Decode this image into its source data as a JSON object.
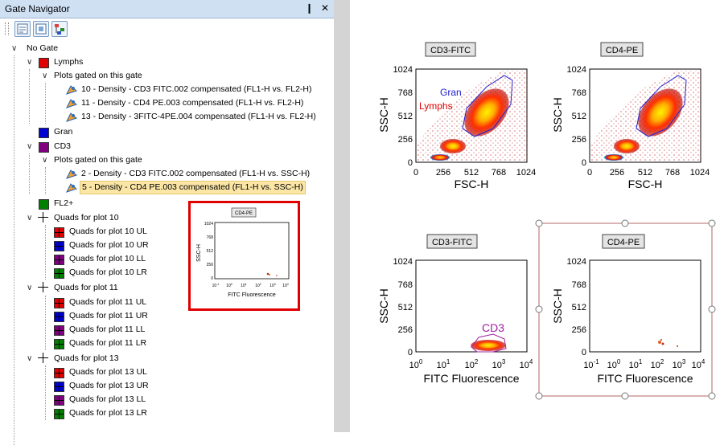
{
  "panel": {
    "title": "Gate Navigator",
    "pin_glyph": "❙",
    "close_glyph": "✕"
  },
  "toolbar": {
    "icons": [
      "gate-list-icon",
      "gate-properties-icon",
      "gate-hierarchy-icon"
    ]
  },
  "tree": {
    "root": "No Gate",
    "lymphs": "Lymphs",
    "plots_gated_1": "Plots gated on this gate",
    "plot_10": "10 - Density - CD3 FITC.002 compensated (FL1-H vs. FL2-H)",
    "plot_11": "11 - Density - CD4 PE.003 compensated (FL1-H vs. FL2-H)",
    "plot_13": "13 - Density - 3FITC-4PE.004 compensated (FL1-H vs. FL2-H)",
    "gran": "Gran",
    "cd3": "CD3",
    "plots_gated_2": "Plots gated on this gate",
    "plot_2": "2 - Density - CD3 FITC.002 compensated (FL1-H vs. SSC-H)",
    "plot_5": "5 - Density - CD4 PE.003 compensated (FL1-H vs. SSC-H)",
    "fl2": "FL2+",
    "quads10": "Quads for plot 10",
    "q10ul": "Quads for plot 10 UL",
    "q10ur": "Quads for plot 10 UR",
    "q10ll": "Quads for plot 10 LL",
    "q10lr": "Quads for plot 10 LR",
    "quads11": "Quads for plot 11",
    "q11ul": "Quads for plot 11 UL",
    "q11ur": "Quads for plot 11 UR",
    "q11ll": "Quads for plot 11 LL",
    "q11lr": "Quads for plot 11 LR",
    "quads13": "Quads for plot 13",
    "q13ul": "Quads for plot 13 UL",
    "q13ur": "Quads for plot 13 UR",
    "q13ll": "Quads for plot 13 LL",
    "q13lr": "Quads for plot 13 LR"
  },
  "colors": {
    "red": "#e00000",
    "blue": "#0000d0",
    "purple": "#800080",
    "green": "#008000",
    "selection": "#fbe6a6",
    "gate_blue": "#2020d0",
    "gate_purple": "#a020a0"
  },
  "thumbnail": {
    "title": "CD4-PE",
    "ylabel": "SSC-H",
    "xlabel": "FITC Fluorescence",
    "yticks": [
      "1024",
      "768",
      "512",
      "256",
      "0"
    ]
  },
  "plots": {
    "p1": {
      "title": "CD3-FITC",
      "ylabel": "SSC-H",
      "xlabel": "FSC-H",
      "gate1": "Gran",
      "gate2": "Lymphs"
    },
    "p2": {
      "title": "CD4-PE",
      "ylabel": "SSC-H",
      "xlabel": "FSC-H"
    },
    "p3": {
      "title": "CD3-FITC",
      "ylabel": "SSC-H",
      "xlabel": "FITC Fluorescence",
      "gate1": "CD3"
    },
    "p4": {
      "title": "CD4-PE",
      "ylabel": "SSC-H",
      "xlabel": "FITC Fluorescence"
    },
    "lin_yticks": [
      "1024",
      "768",
      "512",
      "256",
      "0"
    ],
    "lin_xticks": [
      "0",
      "256",
      "512",
      "768",
      "1024"
    ],
    "log_xticks": [
      "0",
      "1",
      "2",
      "3",
      "4"
    ],
    "log_base": "10"
  }
}
